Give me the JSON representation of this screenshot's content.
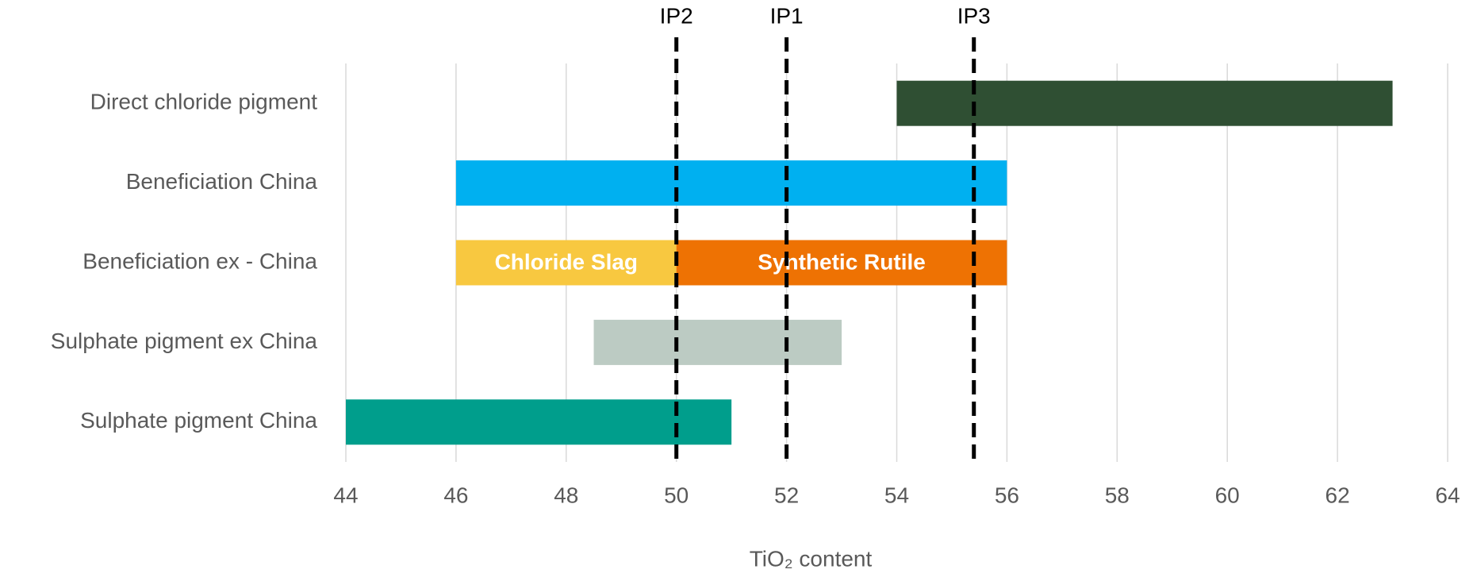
{
  "chart_data": {
    "type": "range_bar",
    "xlabel": "TiO₂ content",
    "categories": [
      "Direct chloride pigment",
      "Beneficiation China",
      "Beneficiation ex - China",
      "Sulphate pigment ex China",
      "Sulphate pigment China"
    ],
    "ranges": [
      [
        {
          "start": 54,
          "end": 63,
          "color": "#2f4f33"
        }
      ],
      [
        {
          "start": 46,
          "end": 56,
          "color": "#00b0f0"
        }
      ],
      [
        {
          "label": "Chloride Slag",
          "start": 46,
          "end": 50,
          "color": "#f8c840"
        },
        {
          "label": "Synthetic Rutile",
          "start": 50,
          "end": 56,
          "color": "#ee7203"
        }
      ],
      [
        {
          "start": 48.5,
          "end": 53,
          "color": "#bccbc3"
        }
      ],
      [
        {
          "start": 44,
          "end": 51,
          "color": "#009e8c"
        }
      ]
    ],
    "reference_lines": [
      {
        "label": "IP2",
        "x": 50
      },
      {
        "label": "IP1",
        "x": 52
      },
      {
        "label": "IP3",
        "x": 55.4
      }
    ],
    "xlim": [
      44,
      64
    ],
    "xticks": [
      44,
      46,
      48,
      50,
      52,
      54,
      56,
      58,
      60,
      62,
      64
    ],
    "grid": true
  }
}
